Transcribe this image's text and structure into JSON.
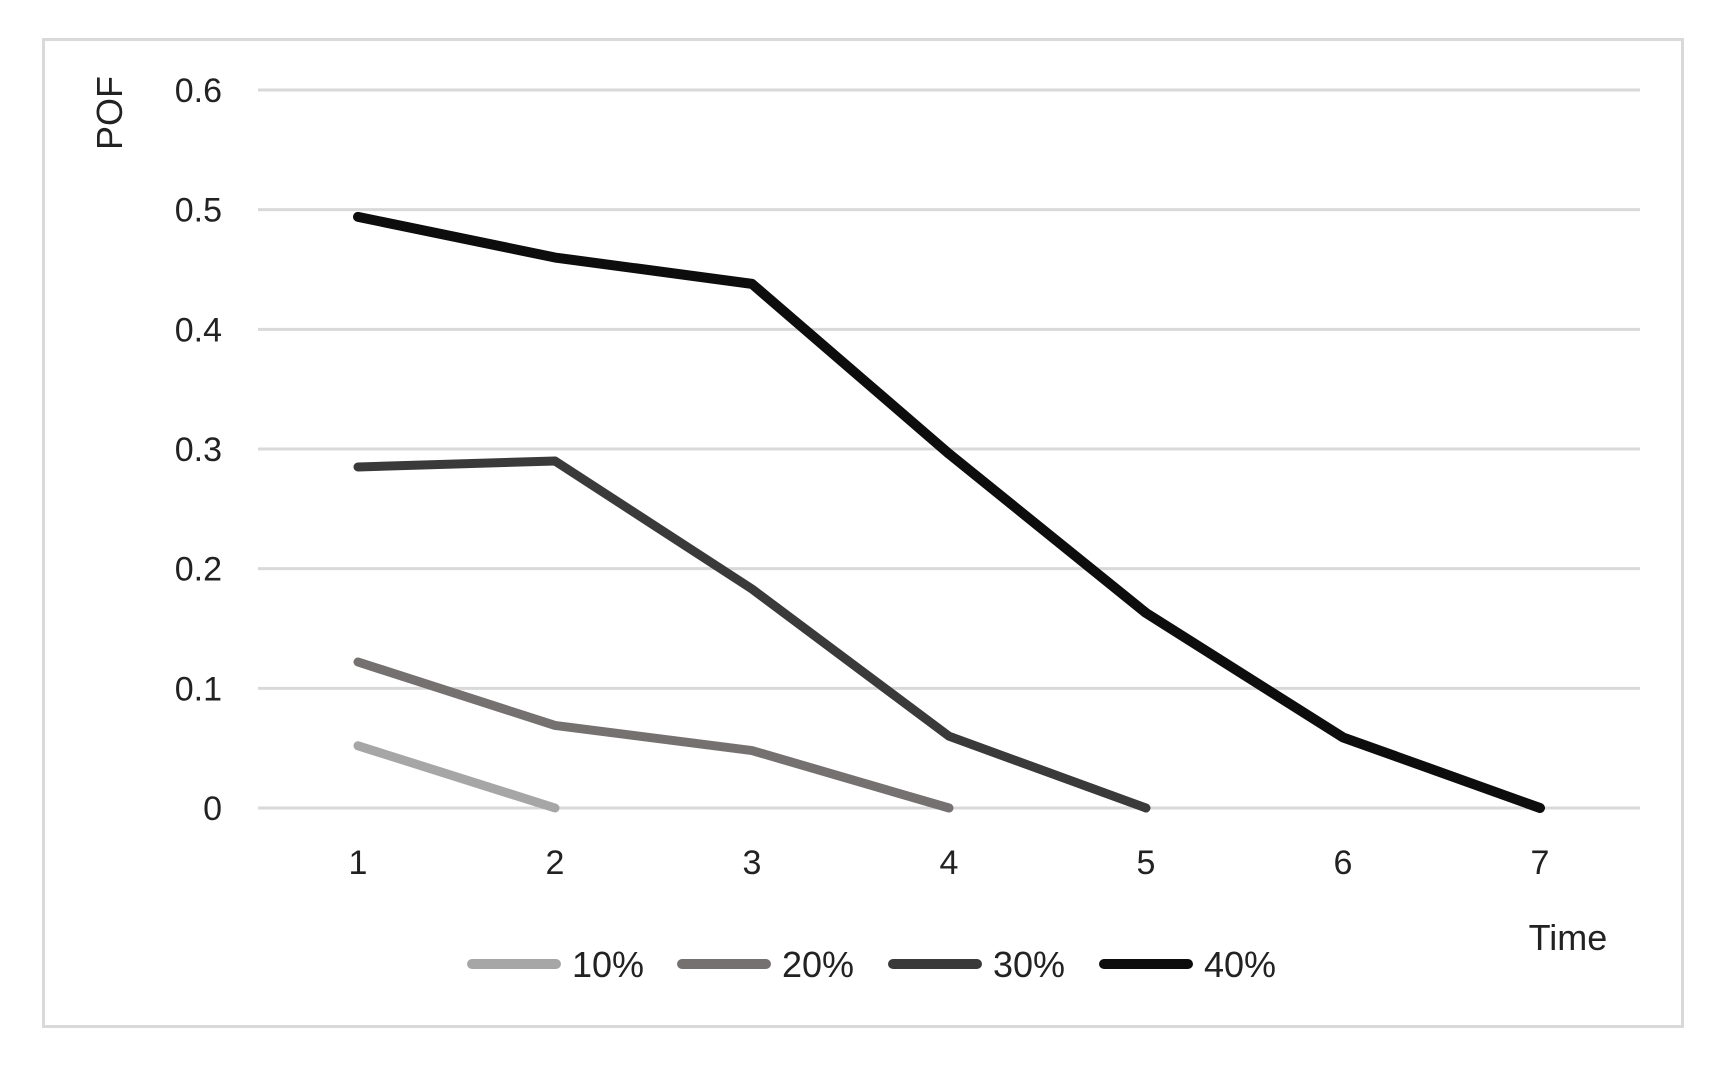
{
  "chart_data": {
    "type": "line",
    "title": "",
    "xlabel": "Time",
    "ylabel": "POF",
    "x": [
      1,
      2,
      3,
      4,
      5,
      6,
      7
    ],
    "ylim": [
      0,
      0.6
    ],
    "yticks": [
      "0",
      "0.1",
      "0.2",
      "0.3",
      "0.4",
      "0.5",
      "0.6"
    ],
    "xticks": [
      "1",
      "2",
      "3",
      "4",
      "5",
      "6",
      "7"
    ],
    "grid": "horizontal",
    "legend_position": "bottom",
    "series": [
      {
        "name": "10%",
        "color": "#a6a6a6",
        "values": [
          0.052,
          0,
          null,
          null,
          null,
          null,
          null
        ]
      },
      {
        "name": "20%",
        "color": "#767171",
        "values": [
          0.122,
          0.069,
          0.048,
          0,
          null,
          null,
          null
        ]
      },
      {
        "name": "30%",
        "color": "#3a3a3a",
        "values": [
          0.285,
          0.29,
          0.183,
          0.06,
          0,
          null,
          null
        ]
      },
      {
        "name": "40%",
        "color": "#0d0d0d",
        "values": [
          0.494,
          0.46,
          0.438,
          0.296,
          0.163,
          0.059,
          0
        ]
      }
    ]
  }
}
